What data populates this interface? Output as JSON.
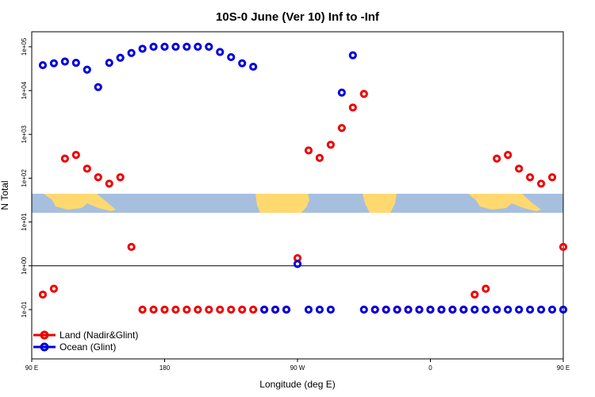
{
  "chart_data": {
    "type": "scatter",
    "title": "10S-0 June (Ver 10)   Inf to -Inf",
    "xlabel": "Longitude (deg E)",
    "ylabel": "N Total",
    "xscale": "linear",
    "yscale": "log",
    "xlim": [
      90,
      450
    ],
    "ylim": [
      0.0075,
      220000
    ],
    "x_ticks": [
      {
        "value": 90,
        "label": "90 E"
      },
      {
        "value": 180,
        "label": "180"
      },
      {
        "value": 270,
        "label": "90 W"
      },
      {
        "value": 360,
        "label": "0"
      },
      {
        "value": 450,
        "label": "90 E"
      },
      {
        "value": 540,
        "label": "180"
      }
    ],
    "y_ticks": [
      {
        "value": 0.1,
        "label": "1e-01"
      },
      {
        "value": 1,
        "label": "1e+00"
      },
      {
        "value": 10,
        "label": "1e+01"
      },
      {
        "value": 100,
        "label": "1e+02"
      },
      {
        "value": 1000,
        "label": "1e+03"
      },
      {
        "value": 10000,
        "label": "1e+04"
      },
      {
        "value": 100000,
        "label": "1e+05"
      }
    ],
    "reference_line_y": 1,
    "grid": false,
    "legend_position": "bottom-left",
    "series": [
      {
        "name": "Land (Nadir&Glint)",
        "color": "#ee0000",
        "x": [
          97.5,
          105,
          112.5,
          120,
          127.5,
          135,
          142.5,
          150,
          157.5,
          165,
          172.5,
          180,
          187.5,
          195,
          202.5,
          210,
          217.5,
          225,
          232.5,
          240,
          247.5,
          255,
          262.5,
          270,
          277.5,
          285,
          292.5,
          300,
          307.5,
          315,
          322.5,
          330,
          337.5,
          345,
          352.5,
          360,
          367.5,
          375,
          382.5,
          390,
          397.5,
          405,
          412.5,
          420,
          427.5,
          435,
          442.5,
          450
        ],
        "y": [
          0.22,
          0.3,
          280,
          340,
          165,
          105,
          75,
          105,
          2.7,
          0.1,
          0.1,
          0.1,
          0.1,
          0.1,
          0.1,
          0.1,
          0.1,
          0.1,
          0.1,
          0.1,
          0.1,
          0.1,
          0.1,
          1.5,
          430,
          290,
          580,
          1400,
          4100,
          8400,
          0.1,
          0.1,
          0.1,
          0.1,
          0.1,
          0.1,
          0.1,
          0.1,
          0.1,
          0.22,
          0.3,
          280,
          340,
          165,
          105,
          75,
          105,
          2.7
        ]
      },
      {
        "name": "Ocean (Glint)",
        "color": "#0000dd",
        "x": [
          97.5,
          105,
          112.5,
          120,
          127.5,
          135,
          142.5,
          150,
          157.5,
          165,
          172.5,
          180,
          187.5,
          195,
          202.5,
          210,
          217.5,
          225,
          232.5,
          240,
          247.5,
          255,
          262.5,
          270,
          277.5,
          285,
          292.5,
          300,
          307.5,
          315,
          322.5,
          330,
          337.5,
          345,
          352.5,
          360,
          367.5,
          375,
          382.5,
          390,
          397.5,
          405,
          412.5,
          420,
          427.5,
          435,
          442.5,
          450
        ],
        "y": [
          38000,
          42000,
          46000,
          43000,
          30000,
          12000,
          43000,
          56000,
          72000,
          90000,
          100000,
          100000,
          100000,
          100000,
          100000,
          100000,
          76000,
          58000,
          42000,
          35000,
          0.1,
          0.1,
          0.1,
          1.1,
          0.1,
          0.1,
          0.1,
          9000,
          64000,
          0.1,
          0.1,
          0.1,
          0.1,
          0.1,
          0.1,
          0.1,
          0.1,
          0.1,
          0.1,
          0.1,
          0.1,
          0.1,
          0.1,
          0.1,
          0.1,
          0.1,
          0.1,
          0.1
        ]
      }
    ],
    "legend": [
      {
        "label": "Land (Nadir&Glint)",
        "color": "#ee0000"
      },
      {
        "label": "Ocean (Glint)",
        "color": "#0000dd"
      }
    ],
    "map_strip": {
      "ocean_color": "#a7bfde",
      "land_color": "#ffd970"
    }
  }
}
